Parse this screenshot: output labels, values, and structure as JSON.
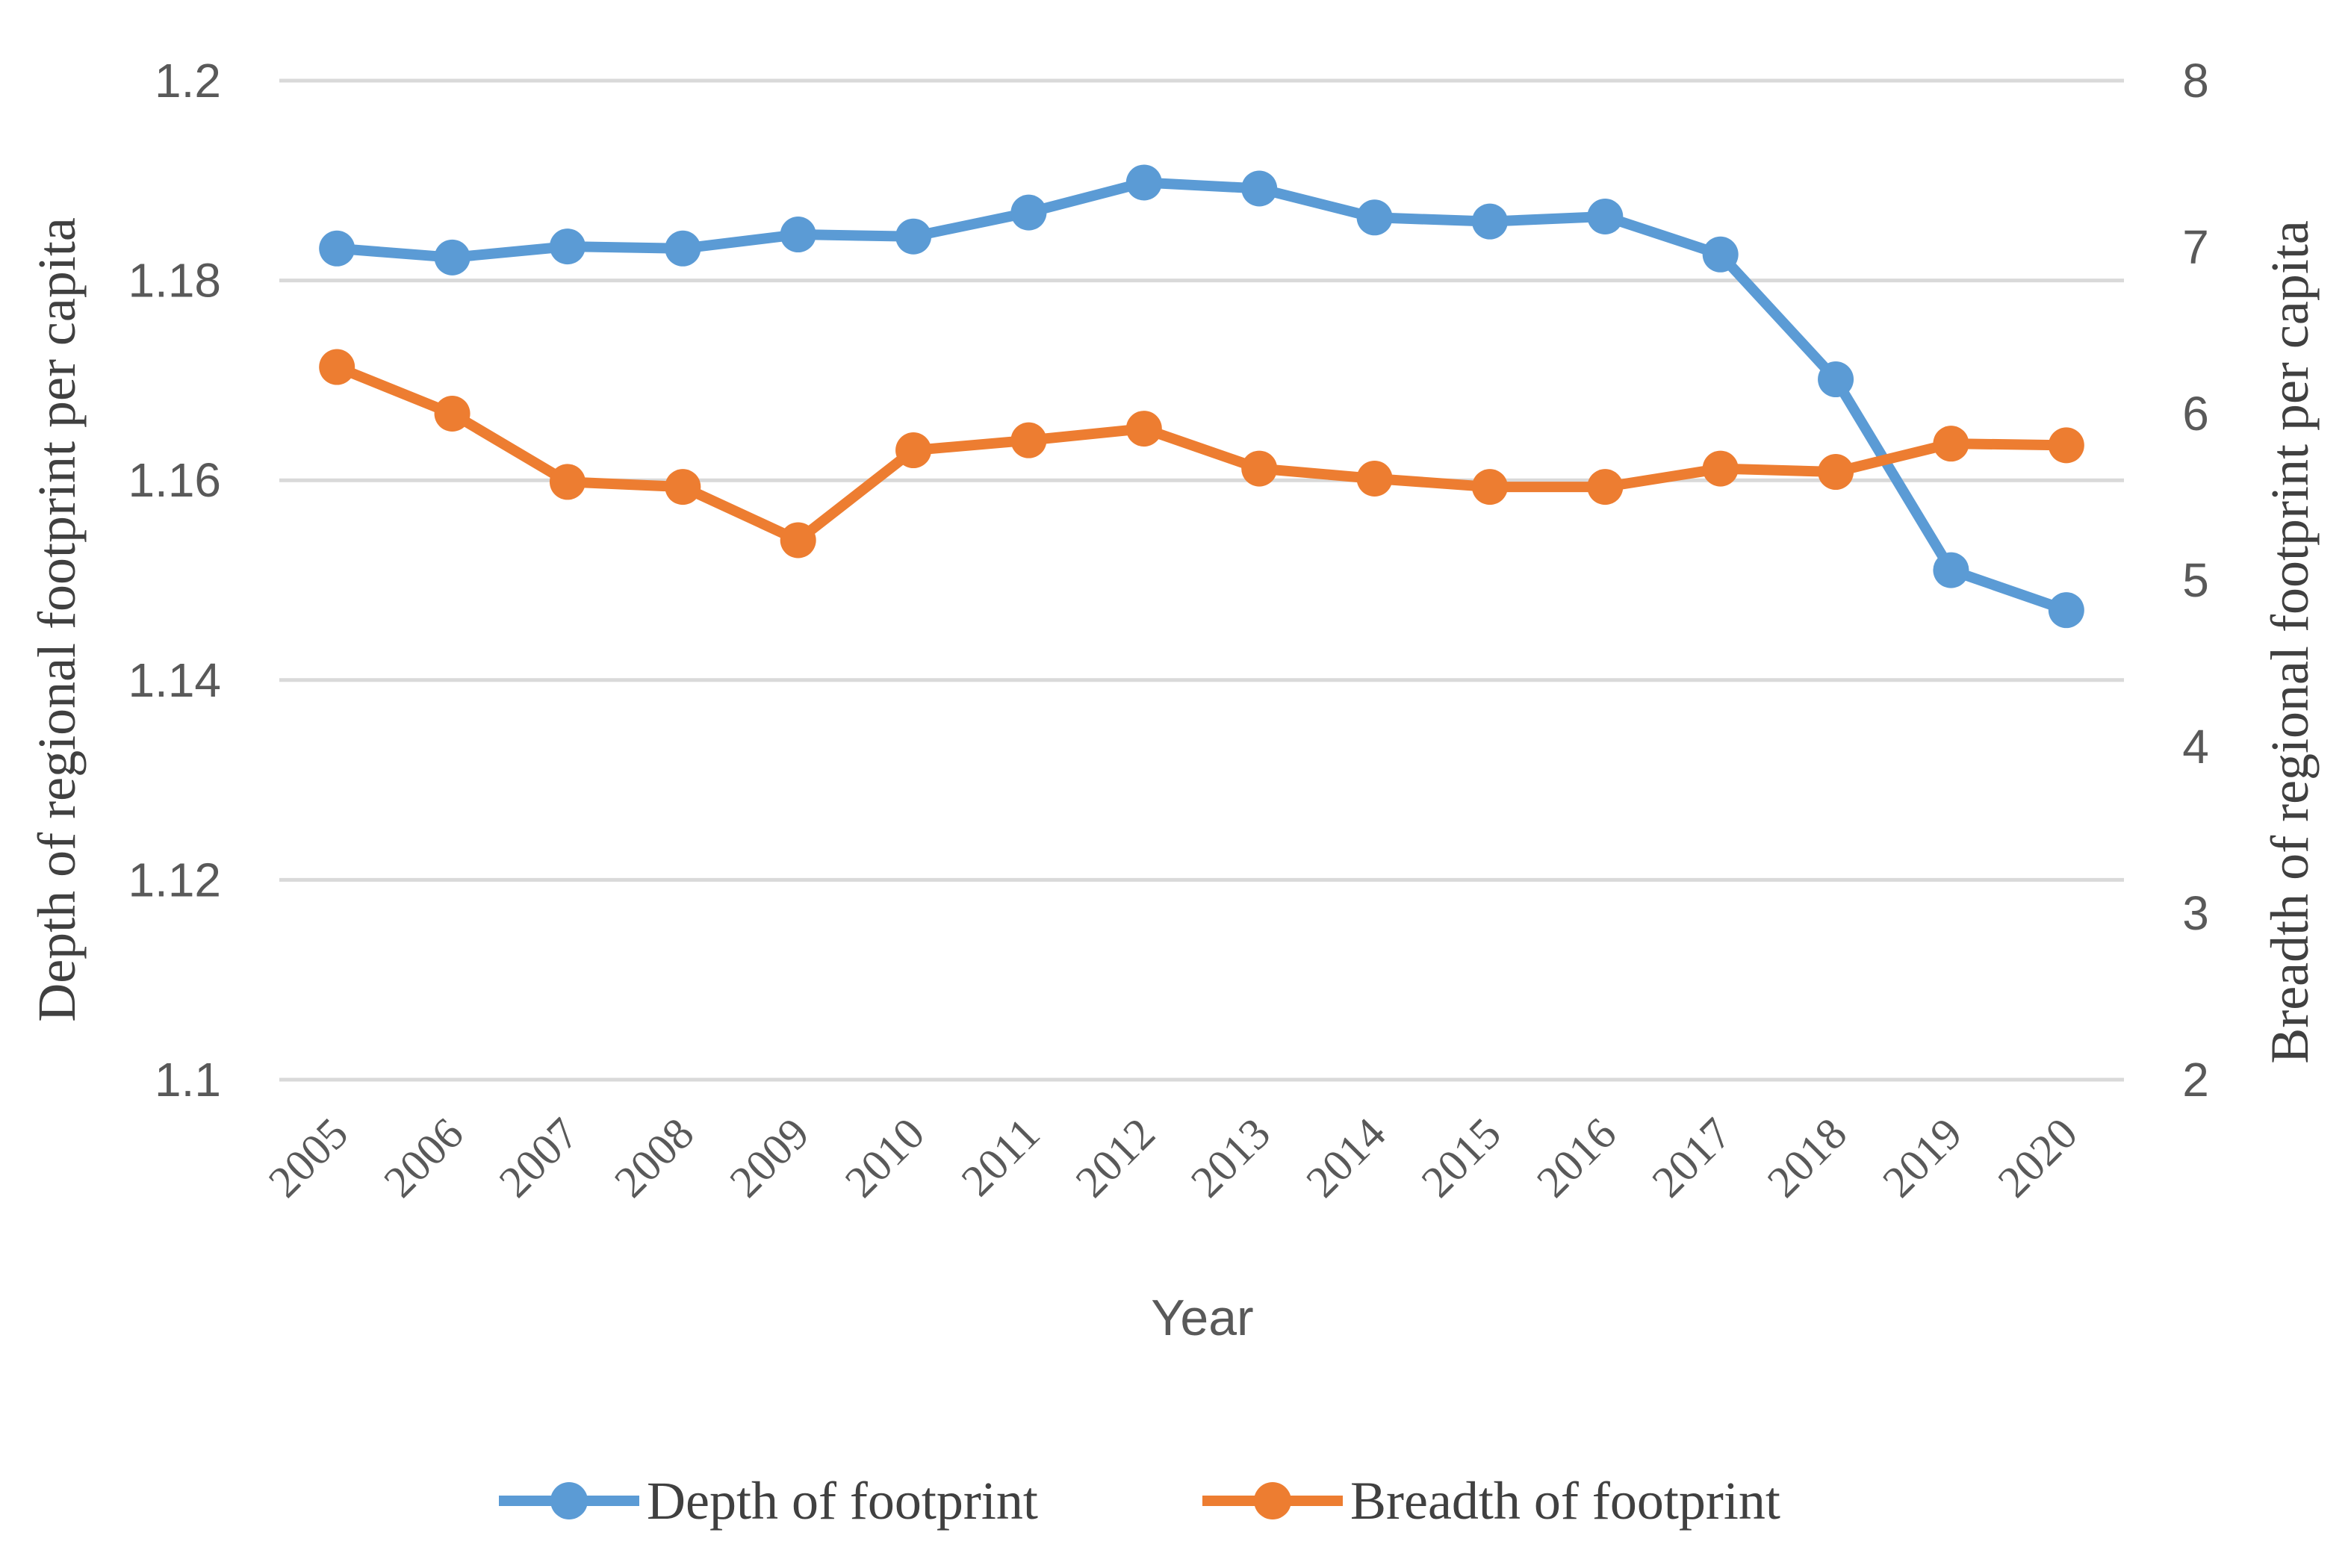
{
  "chart_data": {
    "type": "line",
    "title": "",
    "xlabel": "Year",
    "ylabel_left": "Depth of regional footprint per capita",
    "ylabel_right": "Breadth of regional footprint per capita",
    "categories": [
      "2005",
      "2006",
      "2007",
      "2008",
      "2009",
      "2010",
      "2011",
      "2012",
      "2013",
      "2014",
      "2015",
      "2016",
      "2017",
      "2018",
      "2019",
      "2020"
    ],
    "y_left": {
      "min": 1.1,
      "max": 1.2,
      "ticks": [
        1.2,
        1.18,
        1.16,
        1.14,
        1.12,
        1.1
      ],
      "tick_labels": [
        "1.2",
        "1.18",
        "1.16",
        "1.14",
        "1.12",
        "1.1"
      ]
    },
    "y_right": {
      "min": 2,
      "max": 8,
      "ticks": [
        8,
        7,
        6,
        5,
        4,
        3,
        2
      ],
      "tick_labels": [
        "8",
        "7",
        "6",
        "5",
        "4",
        "3",
        "2"
      ]
    },
    "grid": true,
    "legend_position": "bottom",
    "series": [
      {
        "name": "Depth of footprint",
        "axis": "left",
        "color": "#5b9bd5",
        "values": [
          1.1832,
          1.1823,
          1.1834,
          1.1832,
          1.1846,
          1.1844,
          1.1868,
          1.1898,
          1.1892,
          1.1863,
          1.1859,
          1.1864,
          1.1826,
          1.1701,
          1.151,
          1.147
        ]
      },
      {
        "name": "Breadth of footprint",
        "axis": "right",
        "color": "#ed7d31",
        "values": [
          6.28,
          6.0,
          5.59,
          5.56,
          5.24,
          5.78,
          5.84,
          5.91,
          5.67,
          5.61,
          5.56,
          5.56,
          5.67,
          5.65,
          5.82,
          5.81
        ]
      }
    ]
  }
}
